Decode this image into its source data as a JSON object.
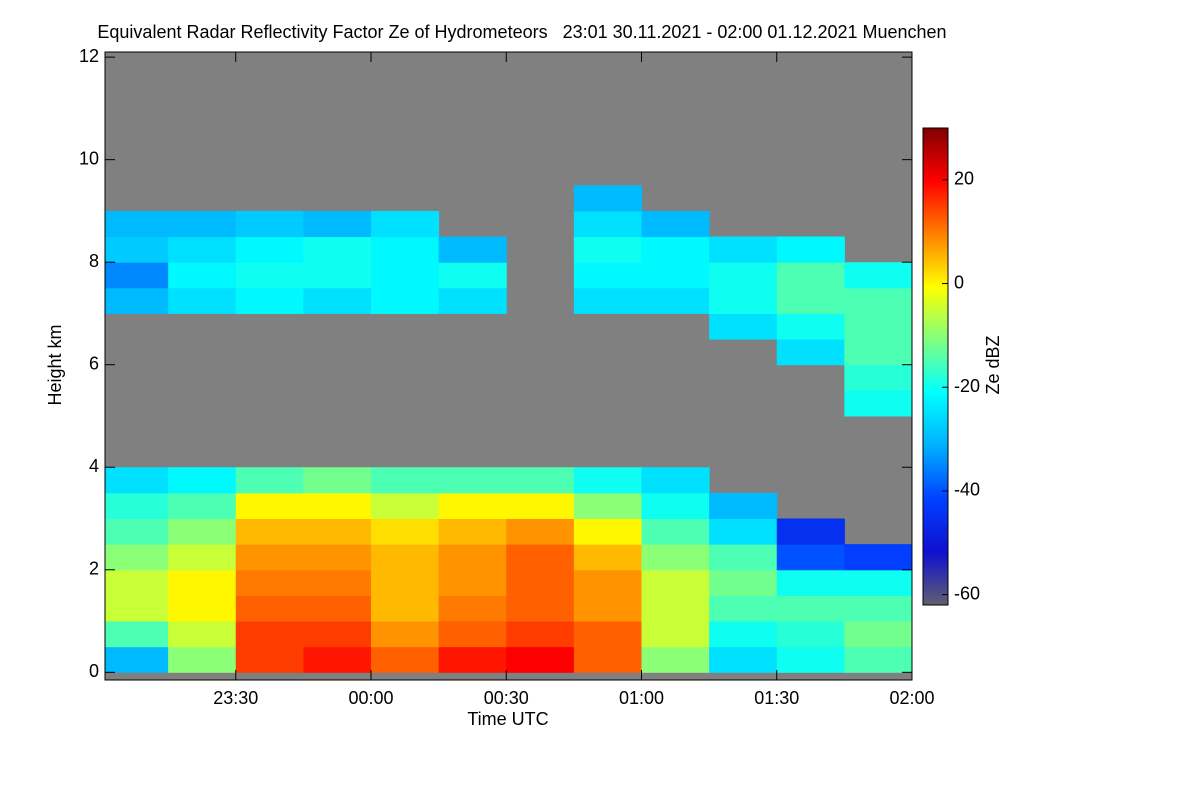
{
  "chart_data": {
    "type": "heatmap",
    "title": "Equivalent Radar Reflectivity Factor Ze of Hydrometeors   23:01 30.11.2021 - 02:00 01.12.2021 Muenchen",
    "xlabel": "Time UTC",
    "ylabel": "Height km",
    "zlabel": "Ze dBZ",
    "xlim": [
      "23:01",
      "02:00"
    ],
    "xticks": [
      "23:30",
      "00:00",
      "00:30",
      "01:00",
      "01:30",
      "02:00"
    ],
    "ylim": [
      -0.15,
      12.1
    ],
    "yticks": [
      0,
      2,
      4,
      6,
      8,
      10,
      12
    ],
    "zlim": [
      -62,
      30
    ],
    "zticks": [
      -60,
      -40,
      -20,
      0,
      20
    ],
    "background": "#808080",
    "colorscale": [
      "#606070",
      "#1010d0",
      "#0040ff",
      "#00b0ff",
      "#00ffff",
      "#80ff80",
      "#ffff00",
      "#ff8000",
      "#ff0000",
      "#800000"
    ],
    "x_bins": [
      "23:01",
      "23:15",
      "23:30",
      "23:45",
      "00:00",
      "00:15",
      "00:30",
      "00:45",
      "01:00",
      "01:15",
      "01:30",
      "01:45",
      "02:00"
    ],
    "y_bins": [
      0,
      0.5,
      1,
      1.5,
      2,
      2.5,
      3,
      3.5,
      4,
      4.5,
      5,
      5.5,
      6,
      6.5,
      7,
      7.5,
      8,
      8.5,
      9,
      9.5,
      10,
      10.5,
      11,
      11.5,
      12
    ],
    "z": [
      [
        -30,
        -10,
        15,
        18,
        12,
        18,
        20,
        12,
        -10,
        -25,
        -20,
        -15
      ],
      [
        -15,
        -5,
        15,
        15,
        8,
        12,
        15,
        12,
        -5,
        -20,
        -18,
        -12
      ],
      [
        -5,
        0,
        12,
        12,
        5,
        10,
        12,
        8,
        -5,
        -15,
        -15,
        -15
      ],
      [
        -5,
        0,
        10,
        10,
        5,
        8,
        12,
        8,
        -5,
        -12,
        -20,
        -20
      ],
      [
        -10,
        -5,
        8,
        8,
        5,
        8,
        12,
        5,
        -10,
        -15,
        -40,
        -42
      ],
      [
        -15,
        -10,
        5,
        5,
        2,
        5,
        8,
        0,
        -15,
        -25,
        -45,
        null
      ],
      [
        -18,
        -15,
        0,
        0,
        -5,
        0,
        0,
        -10,
        -20,
        -30,
        null,
        null
      ],
      [
        -25,
        -22,
        -15,
        -12,
        -15,
        -15,
        -15,
        -20,
        -25,
        null,
        null,
        null
      ],
      [
        null,
        null,
        null,
        null,
        null,
        null,
        null,
        null,
        null,
        null,
        null,
        null
      ],
      [
        null,
        null,
        null,
        null,
        null,
        null,
        null,
        null,
        null,
        null,
        null,
        null
      ],
      [
        null,
        null,
        null,
        null,
        null,
        null,
        null,
        null,
        null,
        null,
        null,
        -20
      ],
      [
        null,
        null,
        null,
        null,
        null,
        null,
        null,
        null,
        null,
        null,
        null,
        -18
      ],
      [
        null,
        null,
        null,
        null,
        null,
        null,
        null,
        null,
        null,
        null,
        -25,
        -15
      ],
      [
        null,
        null,
        null,
        null,
        null,
        null,
        null,
        null,
        null,
        -25,
        -20,
        -15
      ],
      [
        -30,
        -25,
        -22,
        -25,
        -22,
        -25,
        null,
        -25,
        -25,
        -20,
        -15,
        -15
      ],
      [
        -35,
        -22,
        -20,
        -20,
        -22,
        -20,
        null,
        -22,
        -22,
        -20,
        -15,
        -20
      ],
      [
        -28,
        -25,
        -22,
        -20,
        -22,
        -30,
        null,
        -20,
        -22,
        -25,
        -22,
        null
      ],
      [
        -30,
        -30,
        -28,
        -30,
        -25,
        null,
        null,
        -25,
        -30,
        null,
        null,
        null
      ],
      [
        null,
        null,
        null,
        null,
        null,
        null,
        null,
        -30,
        null,
        null,
        null,
        null
      ],
      [
        null,
        null,
        null,
        null,
        null,
        null,
        null,
        null,
        null,
        null,
        null,
        null
      ],
      [
        null,
        null,
        null,
        null,
        null,
        null,
        null,
        null,
        null,
        null,
        null,
        null
      ],
      [
        null,
        null,
        null,
        null,
        null,
        null,
        null,
        null,
        null,
        null,
        null,
        null
      ],
      [
        null,
        null,
        null,
        null,
        null,
        null,
        null,
        null,
        null,
        null,
        null,
        null
      ],
      [
        null,
        null,
        null,
        null,
        null,
        null,
        null,
        null,
        null,
        null,
        null,
        null
      ]
    ]
  }
}
